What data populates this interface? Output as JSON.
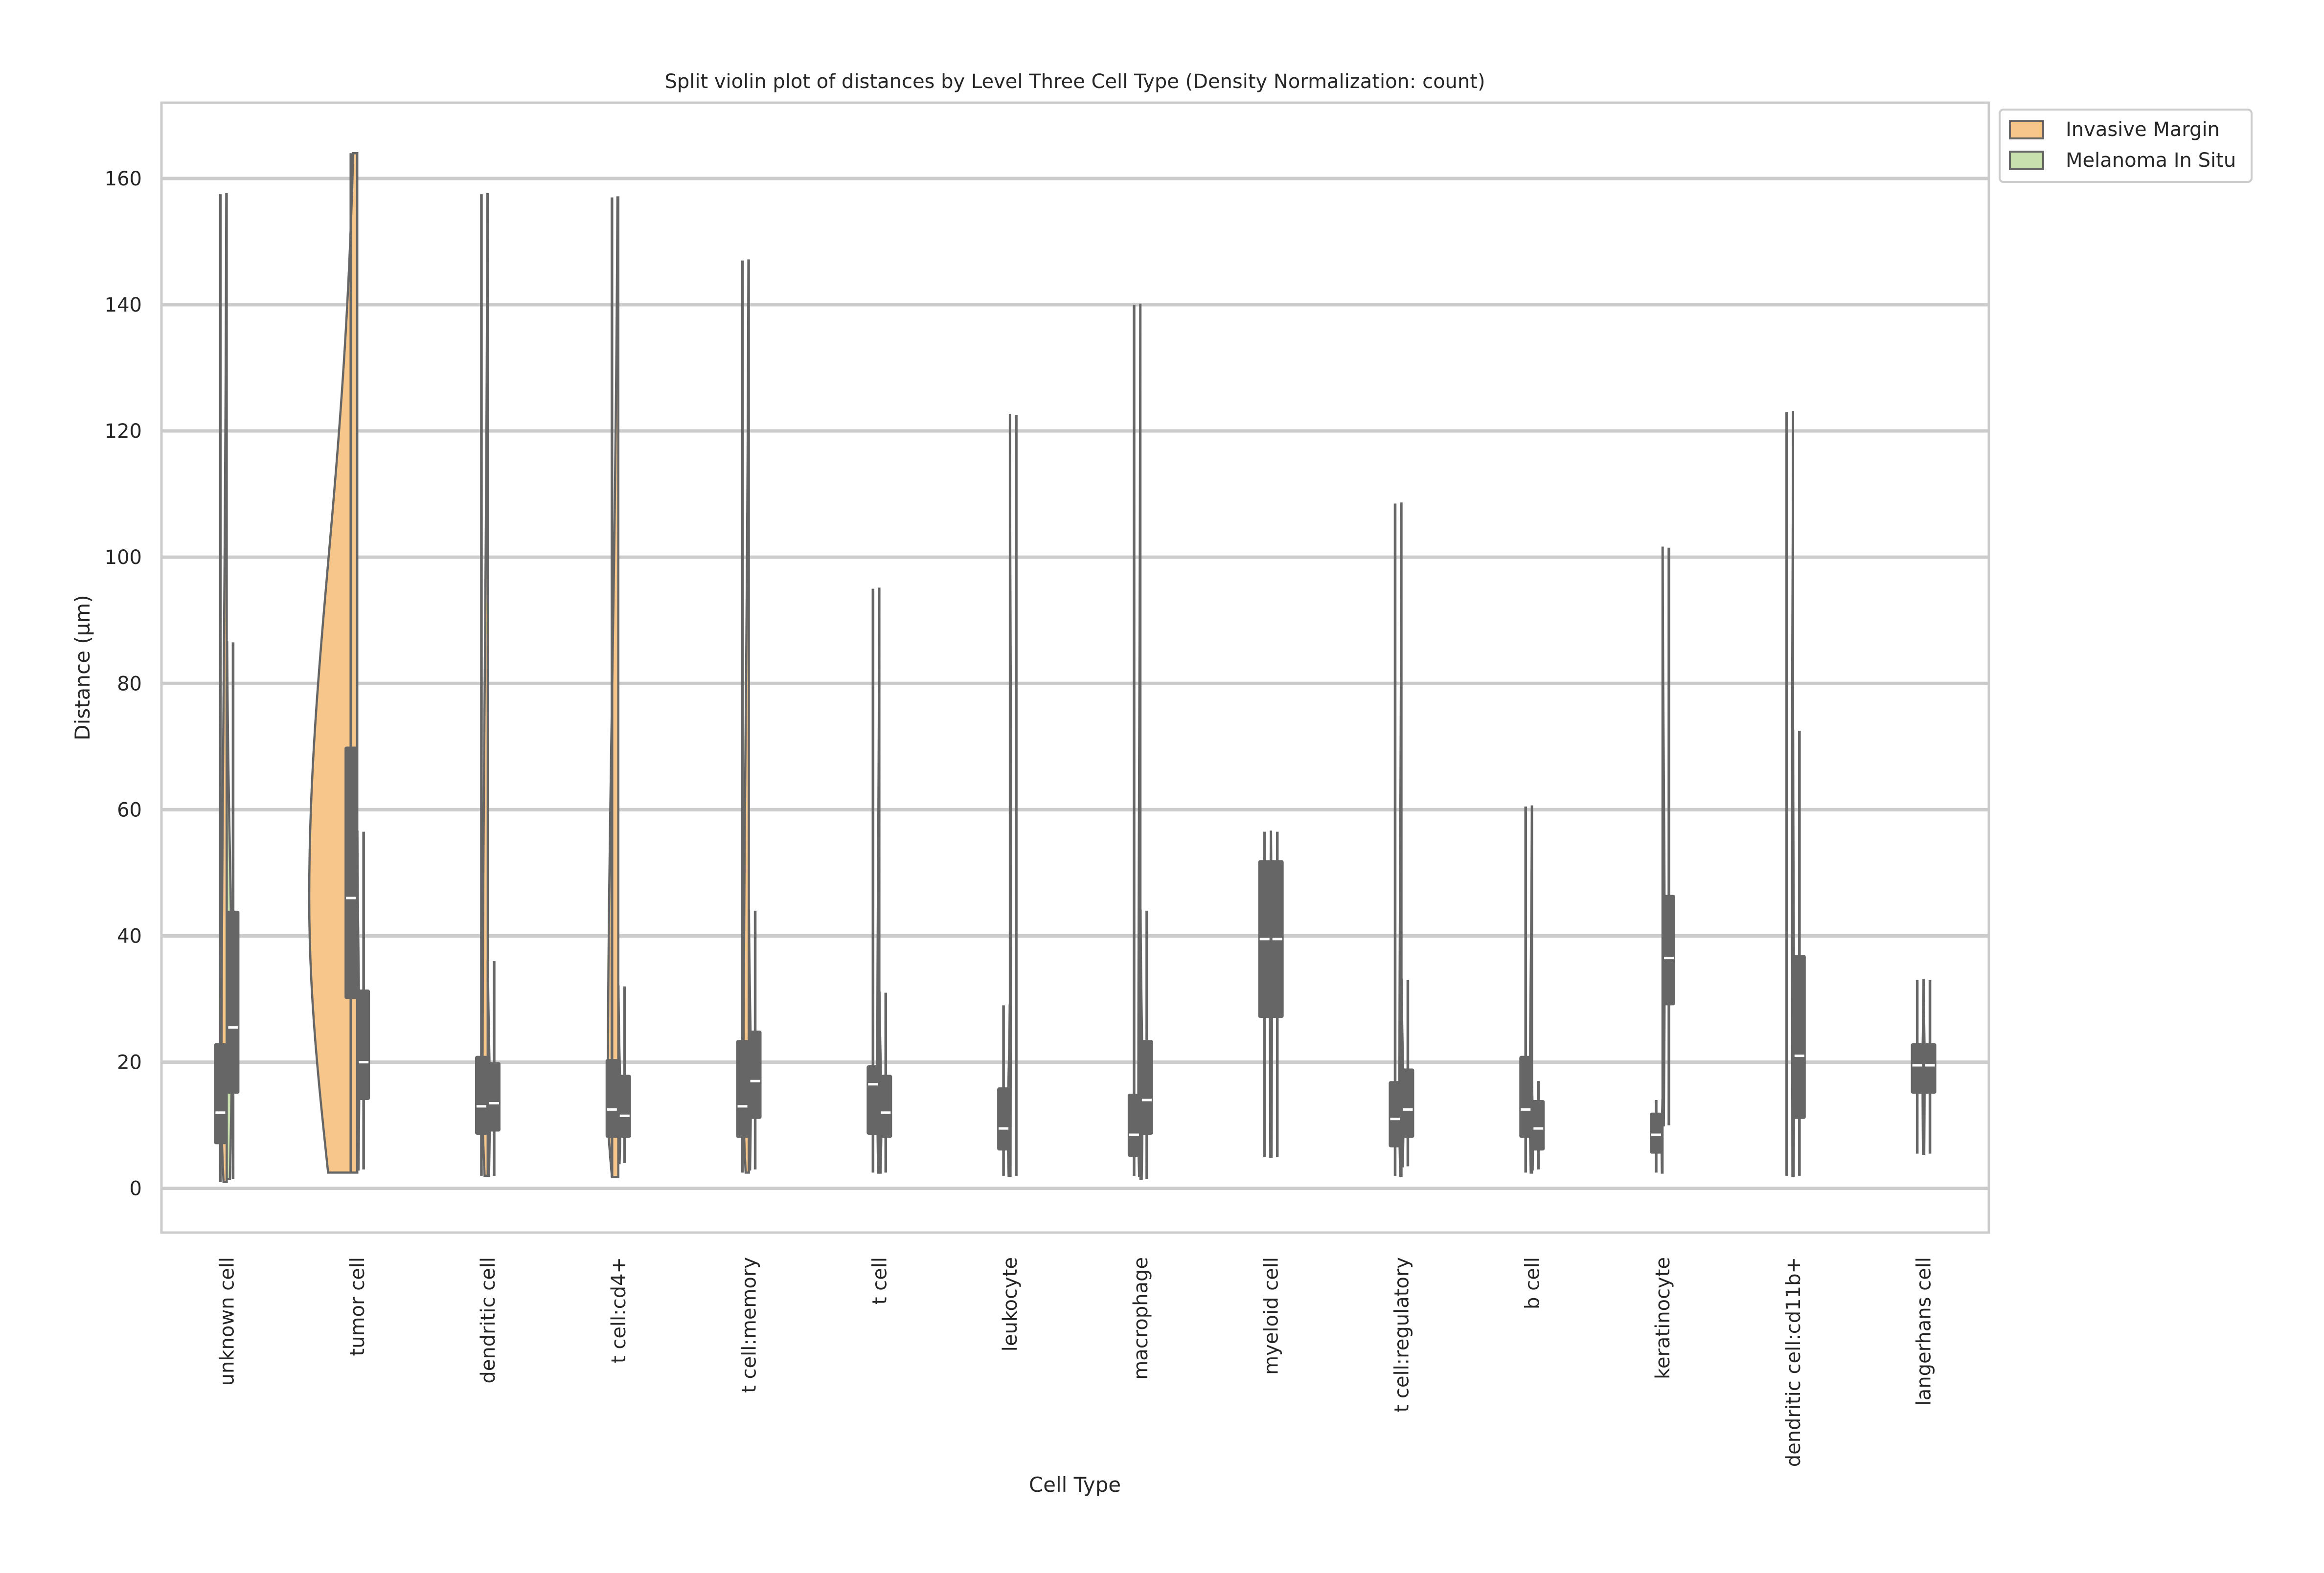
{
  "chart_data": {
    "type": "violin",
    "title": "Split violin plot of distances by Level Three Cell Type (Density Normalization: count)",
    "xlabel": "Cell Type",
    "ylabel": "Distance (µm)",
    "ylim": [
      -7,
      172
    ],
    "yticks": [
      0,
      20,
      40,
      60,
      80,
      100,
      120,
      140,
      160
    ],
    "grid": true,
    "legend_position": "top-right, outside plot",
    "series": [
      {
        "name": "Invasive Margin",
        "color": "#f6c68a"
      },
      {
        "name": "Melanoma In Situ",
        "color": "#c7e0ae"
      }
    ],
    "categories": [
      "unknown cell",
      "tumor cell",
      "dendritic cell",
      "t cell:cd4+",
      "t cell:memory",
      "t cell",
      "leukocyte",
      "macrophage",
      "myeloid cell",
      "t cell:regulatory",
      "b cell",
      "keratinocyte",
      "dendritic cell:cd11b+",
      "langerhans cell"
    ],
    "groups": [
      {
        "category": "unknown cell",
        "invasive_margin": {
          "min": 1.0,
          "q1": 7,
          "median": 12,
          "q3": 23,
          "whisker_high": 46.5,
          "max": 157.5,
          "peak_width": 0.05
        },
        "melanoma_in_situ": {
          "min": 1.5,
          "q1": 15,
          "median": 25.5,
          "q3": 44,
          "whisker_high": 86.5,
          "max": 86.5,
          "peak_width": 0.05
        }
      },
      {
        "category": "tumor cell",
        "invasive_margin": {
          "min": 2.5,
          "q1": 30,
          "median": 46,
          "q3": 70,
          "whisker_high": 129,
          "max": 164,
          "peak_width": 0.46
        },
        "melanoma_in_situ": {
          "min": 3,
          "q1": 14,
          "median": 20,
          "q3": 31.5,
          "whisker_high": 56.5,
          "max": 56.5,
          "peak_width": 0.02
        }
      },
      {
        "category": "dendritic cell",
        "invasive_margin": {
          "min": 2,
          "q1": 8.5,
          "median": 13,
          "q3": 21,
          "whisker_high": 40.5,
          "max": 157.5,
          "peak_width": 0.05
        },
        "melanoma_in_situ": {
          "min": 2,
          "q1": 9,
          "median": 13.5,
          "q3": 20,
          "whisker_high": 36,
          "max": 36,
          "peak_width": 0.02
        }
      },
      {
        "category": "t cell:cd4+",
        "invasive_margin": {
          "min": 1.8,
          "q1": 8,
          "median": 12.5,
          "q3": 20.5,
          "whisker_high": 40,
          "max": 157,
          "peak_width": 0.1
        },
        "melanoma_in_situ": {
          "min": 4,
          "q1": 8,
          "median": 11.5,
          "q3": 18,
          "whisker_high": 32,
          "max": 32,
          "peak_width": 0.02
        }
      },
      {
        "category": "t cell:memory",
        "invasive_margin": {
          "min": 2.5,
          "q1": 8,
          "median": 13,
          "q3": 23.5,
          "whisker_high": 43.5,
          "max": 147,
          "peak_width": 0.05
        },
        "melanoma_in_situ": {
          "min": 3,
          "q1": 11,
          "median": 17,
          "q3": 25,
          "whisker_high": 44,
          "max": 44,
          "peak_width": 0.02
        }
      },
      {
        "category": "t cell",
        "invasive_margin": {
          "min": 2.5,
          "q1": 8.5,
          "median": 16.5,
          "q3": 19.5,
          "whisker_high": 22.5,
          "max": 95,
          "peak_width": 0.02
        },
        "melanoma_in_situ": {
          "min": 2.5,
          "q1": 8,
          "median": 12,
          "q3": 18,
          "whisker_high": 31,
          "max": 31,
          "peak_width": 0.02
        }
      },
      {
        "category": "leukocyte",
        "invasive_margin": {
          "min": 2,
          "q1": 6,
          "median": 9.5,
          "q3": 16,
          "whisker_high": 29,
          "max": 29,
          "peak_width": 0.02
        },
        "melanoma_in_situ": {
          "min": 2,
          "q1": null,
          "median": null,
          "q3": null,
          "whisker_high": 122.5,
          "max": 122.5,
          "peak_width": 0.01
        }
      },
      {
        "category": "macrophage",
        "invasive_margin": {
          "min": 2,
          "q1": 5,
          "median": 8.5,
          "q3": 15,
          "whisker_high": 28,
          "max": 140,
          "peak_width": 0.02
        },
        "melanoma_in_situ": {
          "min": 1.5,
          "q1": 8.5,
          "median": 14,
          "q3": 23.5,
          "whisker_high": 44,
          "max": 44,
          "peak_width": 0.02
        }
      },
      {
        "category": "myeloid cell",
        "invasive_margin": {
          "min": 5,
          "q1": 27,
          "median": 39.5,
          "q3": 52,
          "whisker_high": 56.5,
          "max": 56.5,
          "peak_width": 0.01
        },
        "melanoma_in_situ": {
          "min": 5,
          "q1": 27,
          "median": 39.5,
          "q3": 52,
          "whisker_high": 56.5,
          "max": 56.5,
          "peak_width": 0.01
        }
      },
      {
        "category": "t cell:regulatory",
        "invasive_margin": {
          "min": 2,
          "q1": 6.5,
          "median": 11,
          "q3": 17,
          "whisker_high": 31.5,
          "max": 108.5,
          "peak_width": 0.02
        },
        "melanoma_in_situ": {
          "min": 3.5,
          "q1": 8,
          "median": 12.5,
          "q3": 19,
          "whisker_high": 33,
          "max": 33,
          "peak_width": 0.02
        }
      },
      {
        "category": "b cell",
        "invasive_margin": {
          "min": 2.5,
          "q1": 8,
          "median": 12.5,
          "q3": 21,
          "whisker_high": 38,
          "max": 60.5,
          "peak_width": 0.02
        },
        "melanoma_in_situ": {
          "min": 3,
          "q1": 6,
          "median": 9.5,
          "q3": 14,
          "whisker_high": 17,
          "max": 17,
          "peak_width": 0.01
        }
      },
      {
        "category": "keratinocyte",
        "invasive_margin": {
          "min": 2.5,
          "q1": 5.5,
          "median": 8.5,
          "q3": 12,
          "whisker_high": 14,
          "max": 14,
          "peak_width": 0.01
        },
        "melanoma_in_situ": {
          "min": 10,
          "q1": 29,
          "median": 36.5,
          "q3": 46.5,
          "whisker_high": 70,
          "max": 101.5,
          "peak_width": 0.02
        }
      },
      {
        "category": "dendritic cell:cd11b+",
        "invasive_margin": {
          "min": 2,
          "q1": null,
          "median": null,
          "q3": null,
          "whisker_high": 123,
          "max": 123,
          "peak_width": 0.01
        },
        "melanoma_in_situ": {
          "min": 2,
          "q1": 11,
          "median": 21,
          "q3": 37,
          "whisker_high": 72.5,
          "max": 72.5,
          "peak_width": 0.01
        }
      },
      {
        "category": "langerhans cell",
        "invasive_margin": {
          "min": 5.5,
          "q1": 15,
          "median": 19.5,
          "q3": 23,
          "whisker_high": 33,
          "max": 33,
          "peak_width": 0.01
        },
        "melanoma_in_situ": {
          "min": 5.5,
          "q1": 15,
          "median": 19.5,
          "q3": 23,
          "whisker_high": 33,
          "max": 33,
          "peak_width": 0.01
        }
      }
    ]
  }
}
